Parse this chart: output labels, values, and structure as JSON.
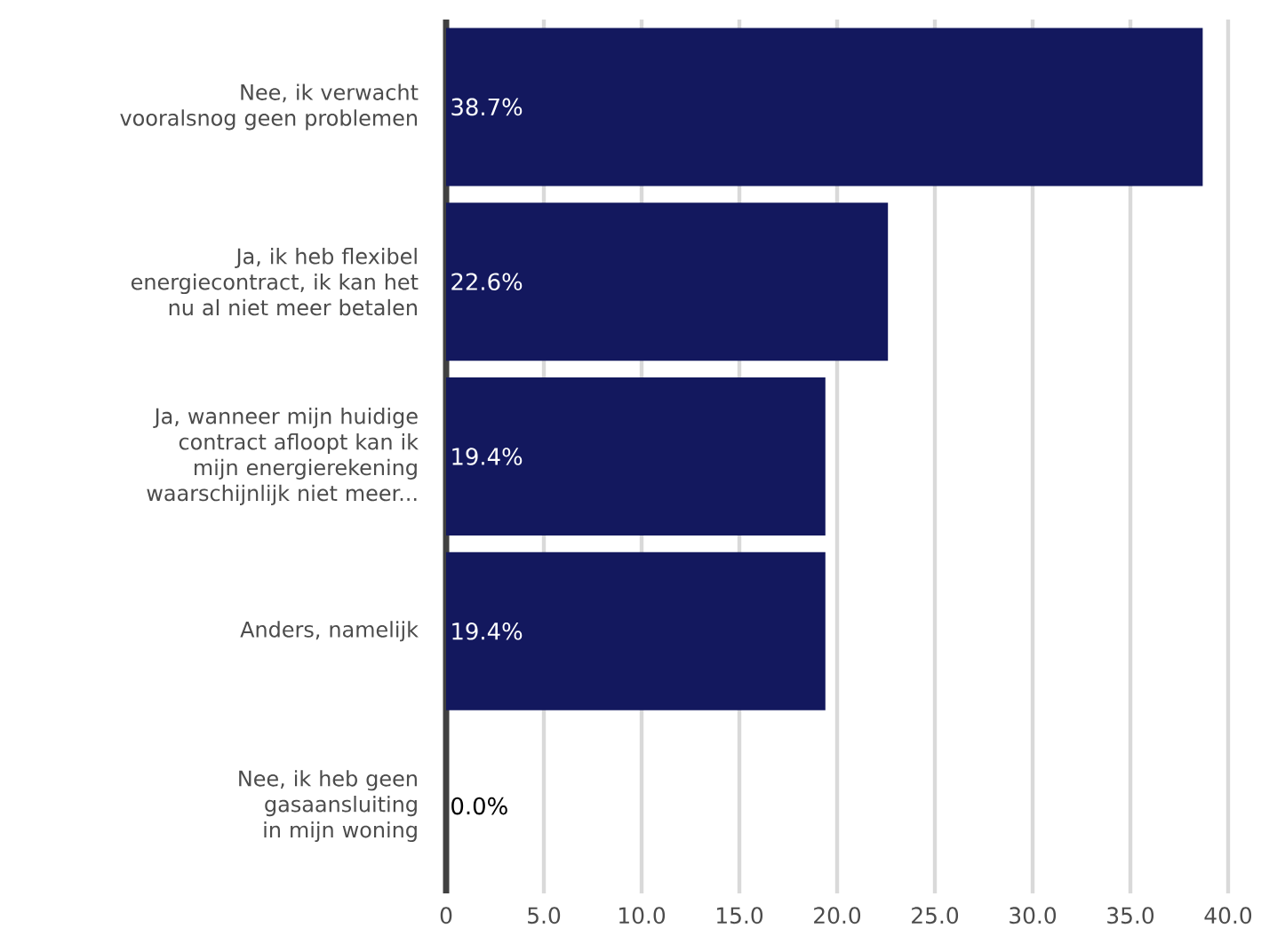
{
  "chart_data": {
    "type": "bar",
    "orientation": "horizontal",
    "categories": [
      "Nee, ik verwacht vooralsnog geen problemen",
      "Ja, ik heb flexibel energiecontract, ik kan het nu al niet meer betalen",
      "Ja, wanneer mijn huidige contract afloopt kan ik mijn energierekening waarschijnlijk niet meer...",
      "Anders, namelijk",
      "Nee, ik heb geen gasaansluiting in mijn woning"
    ],
    "values": [
      38.7,
      22.6,
      19.4,
      19.4,
      0.0
    ],
    "value_labels": [
      "38.7%",
      "22.6%",
      "19.4%",
      "19.4%",
      "0.0%"
    ],
    "color": "#13185e",
    "xlim": [
      0,
      40
    ],
    "xticks": [
      0,
      {
        "value": 5,
        "label": "5.0"
      },
      {
        "value": 10,
        "label": "10.0"
      },
      {
        "value": 15,
        "label": "15.0"
      },
      {
        "value": 20,
        "label": "20.0"
      },
      {
        "value": 25,
        "label": "25.0"
      },
      {
        "value": 30,
        "label": "30.0"
      },
      {
        "value": 35,
        "label": "35.0"
      },
      {
        "value": 40,
        "label": "40.0"
      }
    ],
    "grid": "x"
  }
}
